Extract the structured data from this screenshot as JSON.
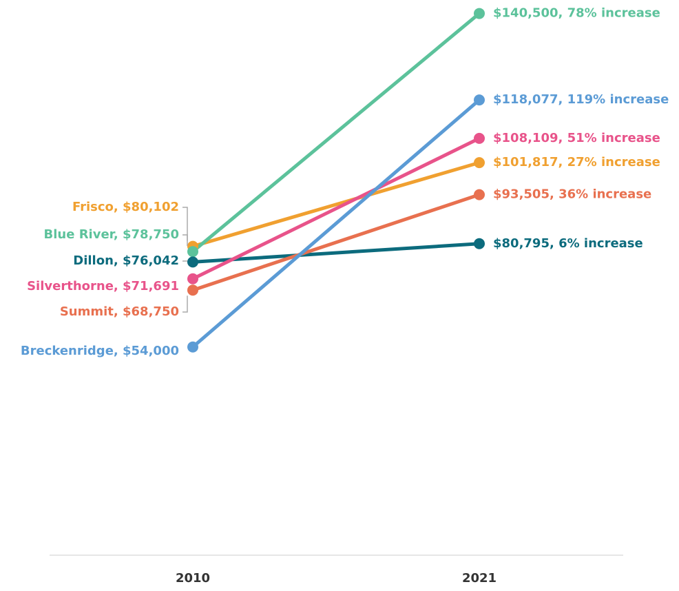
{
  "chart_data": {
    "type": "slope",
    "categories": [
      "2010",
      "2021"
    ],
    "ylim": [
      0,
      144000
    ],
    "series": [
      {
        "color": "#f0a030",
        "values": [
          80102,
          101817
        ],
        "value_labels": [
          "Frisco, $80,102",
          "$101,817, 27% increase"
        ]
      },
      {
        "color": "#5cc29b",
        "values": [
          78750,
          140500
        ],
        "value_labels": [
          "Blue River, $78,750",
          "$140,500, 78% increase"
        ]
      },
      {
        "color": "#0c6b7d",
        "values": [
          76042,
          80795
        ],
        "value_labels": [
          "Dillon, $76,042",
          "$80,795, 6% increase"
        ]
      },
      {
        "color": "#e8538a",
        "values": [
          71691,
          108109
        ],
        "value_labels": [
          "Silverthorne, $71,691",
          "$108,109, 51% increase"
        ]
      },
      {
        "color": "#e8704f",
        "values": [
          68750,
          93505
        ],
        "value_labels": [
          "Summit, $68,750",
          "$93,505, 36% increase"
        ]
      },
      {
        "color": "#5b9bd5",
        "values": [
          54000,
          118077
        ],
        "value_labels": [
          "Breckenridge, $54,000",
          "$118,077, 119% increase"
        ]
      }
    ]
  }
}
